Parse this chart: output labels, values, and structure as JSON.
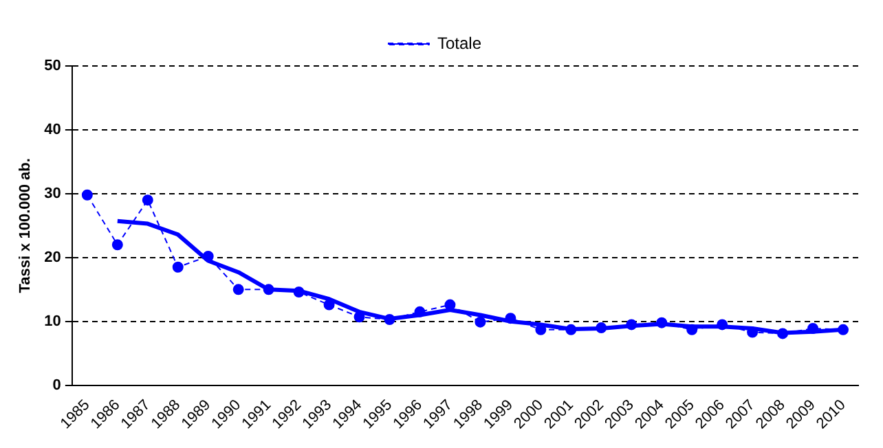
{
  "chart_data": {
    "type": "line",
    "ylabel": "Tassi x 100.000 ab.",
    "categories": [
      "1985",
      "1986",
      "1987",
      "1988",
      "1989",
      "1990",
      "1991",
      "1992",
      "1993",
      "1994",
      "1995",
      "1996",
      "1997",
      "1998",
      "1999",
      "2000",
      "2001",
      "2002",
      "2003",
      "2004",
      "2005",
      "2006",
      "2007",
      "2008",
      "2009",
      "2010"
    ],
    "series": [
      {
        "name": "Totale",
        "color": "#0000ff",
        "line_style": "dashed",
        "marker": "circle",
        "values": [
          29.8,
          22,
          29,
          18.5,
          20.2,
          15,
          15,
          14.6,
          12.6,
          10.7,
          10.3,
          11.5,
          12.6,
          9.9,
          10.5,
          8.7,
          8.7,
          9,
          9.5,
          9.8,
          8.7,
          9.5,
          8.3,
          8.1,
          8.9,
          8.7
        ]
      },
      {
        "color": "#0000ff",
        "line_style": "solid",
        "marker": "none",
        "values": [
          null,
          25.7,
          25.3,
          23.6,
          19.5,
          17.7,
          15,
          14.8,
          13.5,
          11.5,
          10.4,
          11,
          11.8,
          11,
          10,
          9.5,
          8.8,
          8.9,
          9.3,
          9.6,
          9.2,
          9.2,
          8.9,
          8.2,
          8.4,
          8.7
        ]
      }
    ],
    "ylim": [
      0,
      50
    ],
    "yticks": [
      0,
      10,
      20,
      30,
      40,
      50
    ],
    "grid": "y",
    "legend": "top"
  }
}
